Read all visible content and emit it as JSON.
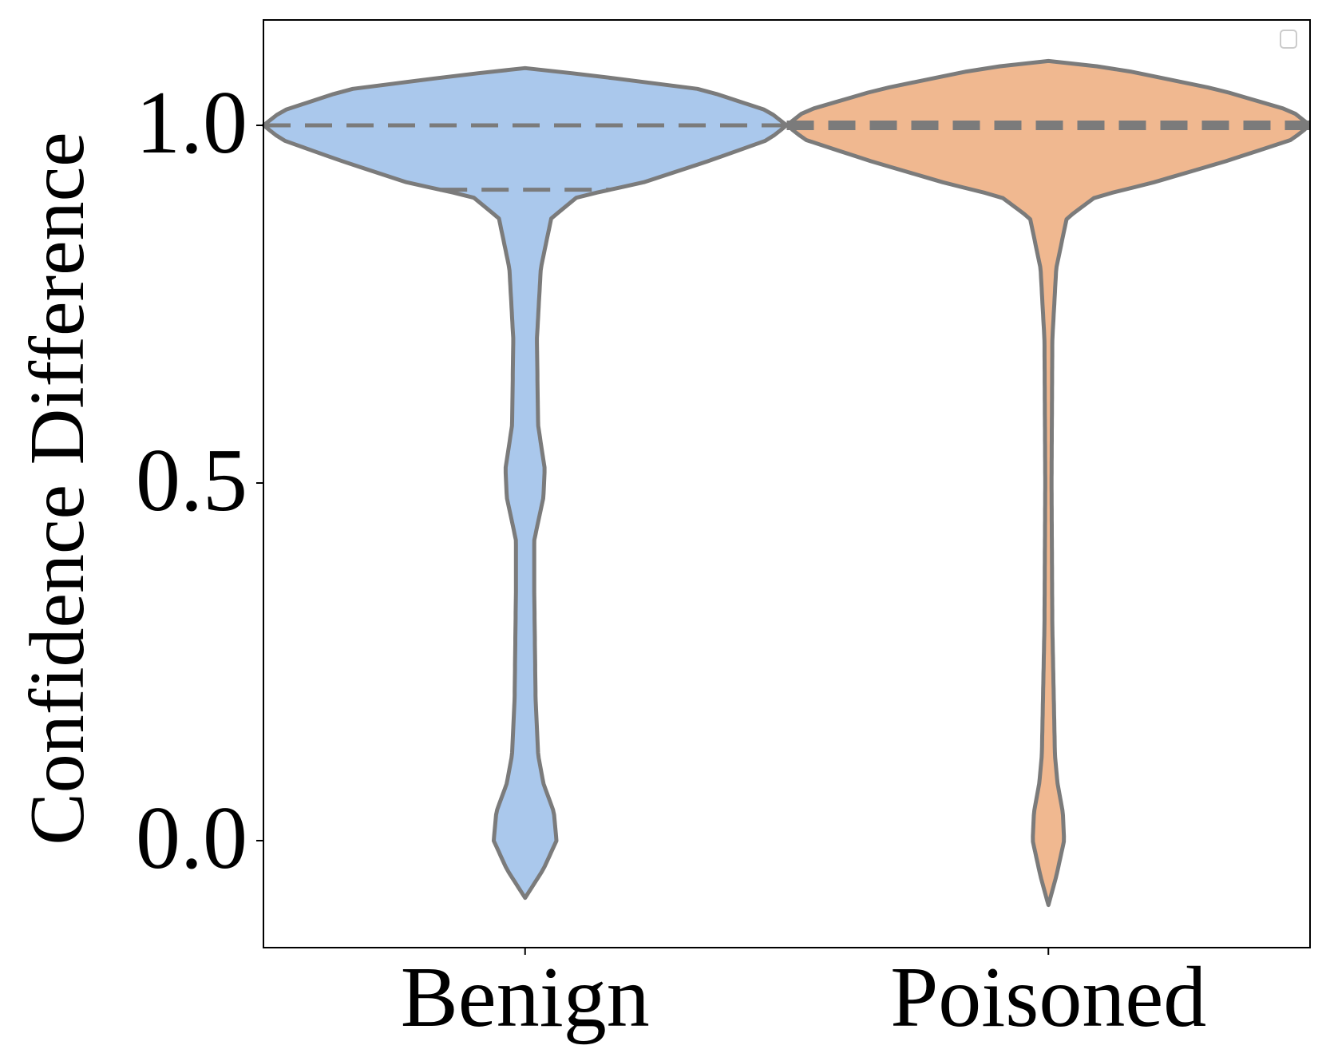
{
  "chart_data": {
    "type": "violin",
    "ylabel": "Confidence Difference",
    "xlabel": "",
    "categories": [
      "Benign",
      "Poisoned"
    ],
    "ylim": [
      -0.15,
      1.15
    ],
    "yticks": [
      0.0,
      0.5,
      1.0
    ],
    "ytick_labels": [
      "0.0",
      "0.5",
      "1.0"
    ],
    "legend": "top-right (empty)",
    "grid": false,
    "colors": {
      "Benign": "#aac8ec",
      "Poisoned": "#f0b890",
      "outline": "#7b7b7b"
    },
    "series": [
      {
        "category": "Benign",
        "y_min": -0.08,
        "y_max": 1.08,
        "quartiles": [
          0.91,
          1.0,
          1.0
        ],
        "density_profile": [
          [
            -0.08,
            0.0
          ],
          [
            -0.04,
            0.07
          ],
          [
            0.0,
            0.12
          ],
          [
            0.04,
            0.11
          ],
          [
            0.08,
            0.07
          ],
          [
            0.12,
            0.05
          ],
          [
            0.2,
            0.04
          ],
          [
            0.35,
            0.035
          ],
          [
            0.42,
            0.035
          ],
          [
            0.48,
            0.07
          ],
          [
            0.52,
            0.075
          ],
          [
            0.58,
            0.05
          ],
          [
            0.7,
            0.045
          ],
          [
            0.8,
            0.06
          ],
          [
            0.87,
            0.1
          ],
          [
            0.9,
            0.2
          ],
          [
            0.92,
            0.45
          ],
          [
            0.95,
            0.7
          ],
          [
            0.98,
            0.93
          ],
          [
            1.0,
            1.0
          ],
          [
            1.02,
            0.93
          ],
          [
            1.05,
            0.68
          ],
          [
            1.07,
            0.25
          ],
          [
            1.08,
            0.0
          ]
        ]
      },
      {
        "category": "Poisoned",
        "y_min": -0.09,
        "y_max": 1.09,
        "quartiles": [
          1.0,
          1.0,
          1.0
        ],
        "density_profile": [
          [
            -0.09,
            0.0
          ],
          [
            -0.05,
            0.03
          ],
          [
            0.0,
            0.06
          ],
          [
            0.04,
            0.055
          ],
          [
            0.08,
            0.035
          ],
          [
            0.12,
            0.025
          ],
          [
            0.3,
            0.015
          ],
          [
            0.5,
            0.012
          ],
          [
            0.7,
            0.015
          ],
          [
            0.8,
            0.03
          ],
          [
            0.87,
            0.07
          ],
          [
            0.9,
            0.18
          ],
          [
            0.92,
            0.4
          ],
          [
            0.95,
            0.68
          ],
          [
            0.98,
            0.93
          ],
          [
            1.0,
            1.0
          ],
          [
            1.02,
            0.93
          ],
          [
            1.05,
            0.65
          ],
          [
            1.08,
            0.25
          ],
          [
            1.09,
            0.0
          ]
        ]
      }
    ]
  }
}
